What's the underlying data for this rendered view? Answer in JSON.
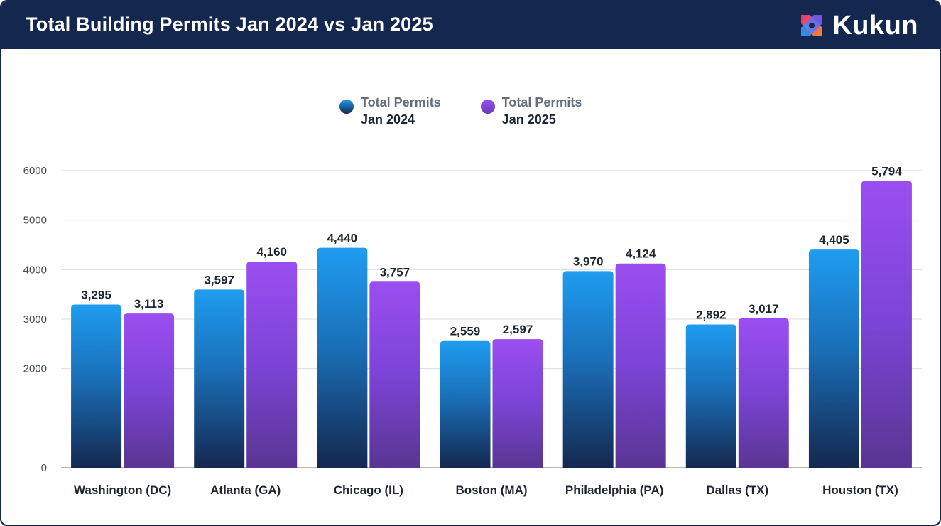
{
  "header": {
    "title": "Total Building Permits Jan 2024 vs Jan 2025",
    "brand": "Kukun"
  },
  "colors": {
    "header_bg": "#14284f",
    "series_2024_top": "#1f9cf0",
    "series_2024_bottom": "#14284f",
    "series_2025_top": "#9b4ef0",
    "series_2025_bottom": "#5a3592"
  },
  "legend": [
    {
      "line1": "Total Permits",
      "line2": "Jan 2024"
    },
    {
      "line1": "Total Permits",
      "line2": "Jan 2025"
    }
  ],
  "chart_data": {
    "type": "bar",
    "title": "Total Building Permits Jan 2024 vs Jan 2025",
    "xlabel": "",
    "ylabel": "",
    "ylim": [
      0,
      6000
    ],
    "yticks": [
      0,
      2000,
      3000,
      4000,
      5000,
      6000
    ],
    "grid": true,
    "legend_position": "top-center",
    "categories": [
      "Washington (DC)",
      "Atlanta (GA)",
      "Chicago (IL)",
      "Boston (MA)",
      "Philadelphia (PA)",
      "Dallas (TX)",
      "Houston (TX)"
    ],
    "series": [
      {
        "name": "Total Permits Jan 2024",
        "values": [
          3295,
          3597,
          4440,
          2559,
          3970,
          2892,
          4405
        ],
        "labels": [
          "3,295",
          "3,597",
          "4,440",
          "2,559",
          "3,970",
          "2,892",
          "4,405"
        ]
      },
      {
        "name": "Total Permits Jan 2025",
        "values": [
          3113,
          4160,
          3757,
          2597,
          4124,
          3017,
          5794
        ],
        "labels": [
          "3,113",
          "4,160",
          "3,757",
          "2,597",
          "4,124",
          "3,017",
          "5,794"
        ]
      }
    ]
  }
}
